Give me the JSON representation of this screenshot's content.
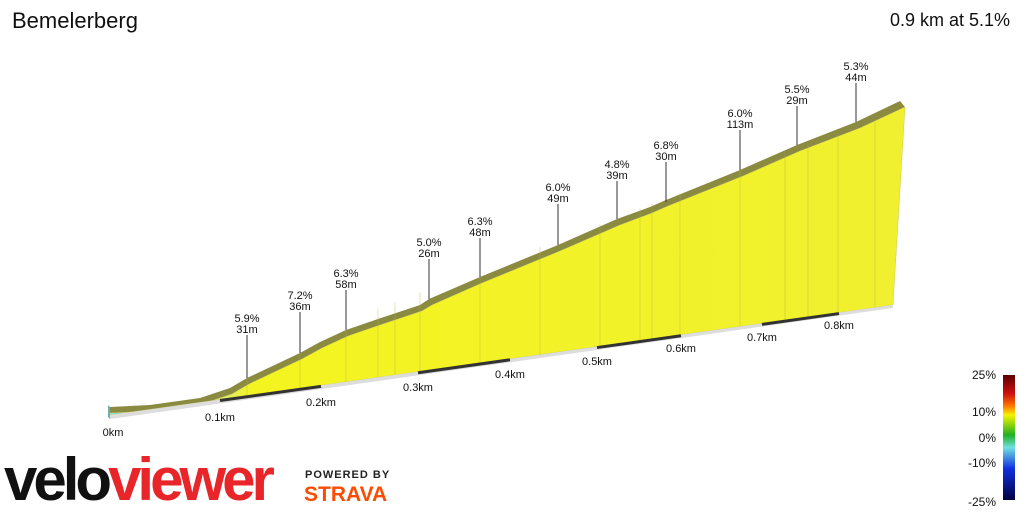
{
  "header": {
    "title": "Bemelerberg",
    "summary": "0.9 km at 5.1%"
  },
  "annotations": [
    {
      "grade": "5.9%",
      "length": "31m"
    },
    {
      "grade": "7.2%",
      "length": "36m"
    },
    {
      "grade": "6.3%",
      "length": "58m"
    },
    {
      "grade": "5.0%",
      "length": "26m"
    },
    {
      "grade": "6.3%",
      "length": "48m"
    },
    {
      "grade": "6.0%",
      "length": "49m"
    },
    {
      "grade": "4.8%",
      "length": "39m"
    },
    {
      "grade": "6.8%",
      "length": "30m"
    },
    {
      "grade": "6.0%",
      "length": "113m"
    },
    {
      "grade": "5.5%",
      "length": "29m"
    },
    {
      "grade": "5.3%",
      "length": "44m"
    }
  ],
  "distance_labels": [
    "0km",
    "0.1km",
    "0.2km",
    "0.3km",
    "0.4km",
    "0.5km",
    "0.6km",
    "0.7km",
    "0.8km"
  ],
  "legend": {
    "labels": [
      "25%",
      "10%",
      "0%",
      "-10%",
      "-25%"
    ]
  },
  "logo": {
    "velo": "velo",
    "viewer": "viewer",
    "powered": "POWERED BY",
    "strava": "STRAVA"
  }
}
